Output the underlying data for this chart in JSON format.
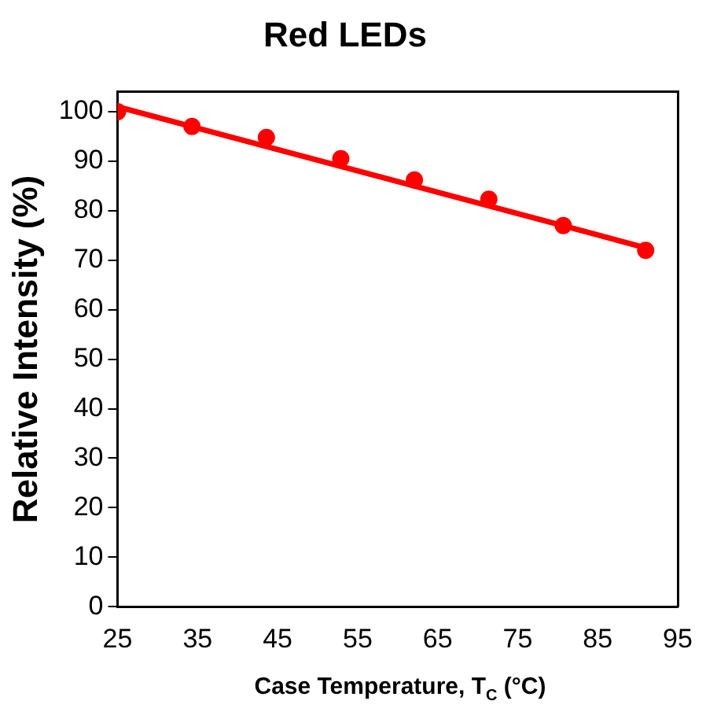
{
  "chart_data": {
    "type": "scatter",
    "title": "Red LEDs",
    "xlabel": "Case Temperature, T$_{C}$ (°C)",
    "ylabel": "Relative Intensity (%)",
    "xlim": [
      25,
      95
    ],
    "xticks": [
      25,
      35,
      45,
      55,
      65,
      75,
      85,
      95
    ],
    "ylim": [
      0,
      104
    ],
    "yticks": [
      0,
      10,
      20,
      30,
      40,
      50,
      60,
      70,
      80,
      90,
      100
    ],
    "grid": false,
    "legend": false,
    "marker": "circle",
    "series": [
      {
        "type": "scatter",
        "color": "#ff0000",
        "x": [
          25,
          34.3,
          43.6,
          52.9,
          62.1,
          71.4,
          80.7,
          91
        ],
        "values": [
          100,
          97,
          94.8,
          90.5,
          86.2,
          82.3,
          77,
          72
        ]
      },
      {
        "type": "line",
        "color": "#ff0000",
        "x": [
          25,
          91
        ],
        "values": [
          101,
          72.5
        ],
        "marker": "none",
        "line_style": "solid"
      }
    ]
  }
}
